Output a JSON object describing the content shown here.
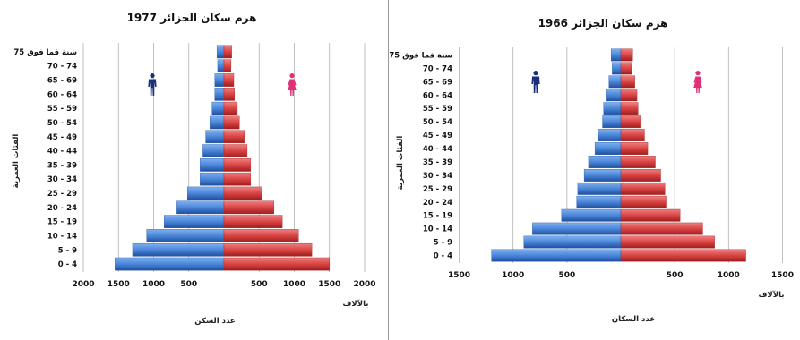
{
  "colors": {
    "male": "#4a86d8",
    "male_dark": "#1f4fa0",
    "female": "#d94444",
    "female_dark": "#a01e1e",
    "male_icon": "#1a2e7a",
    "female_icon": "#e0307a",
    "grid": "#b0b0b0"
  },
  "icons": {
    "male": "male-figure-icon",
    "female": "female-figure-icon"
  },
  "chart_data": [
    {
      "type": "bar",
      "title": "هرم سكان الجزائر 1977",
      "ylabel": "الفئات العمرية",
      "xlabel": "عدد السكن",
      "unit_label": "بالآلاف",
      "categories": [
        "0 - 4",
        "5 - 9",
        "10 - 14",
        "15 - 19",
        "20 - 24",
        "25 - 29",
        "30 - 34",
        "35 - 39",
        "40 - 44",
        "45 - 49",
        "50 - 54",
        "55 - 59",
        "60 - 64",
        "65 - 69",
        "70 - 74",
        "75 سنة فما فوق"
      ],
      "x_ticks_left": [
        "2000",
        "1500",
        "1000",
        "500"
      ],
      "x_ticks_right": [
        "500",
        "1000",
        "1500",
        "2000"
      ],
      "xlim": [
        -2000,
        2000
      ],
      "grid": true,
      "series": [
        {
          "side": "left",
          "values": [
            1550,
            1300,
            1100,
            850,
            670,
            520,
            340,
            340,
            300,
            260,
            200,
            170,
            130,
            130,
            90,
            100
          ]
        },
        {
          "side": "right",
          "values": [
            1500,
            1250,
            1060,
            830,
            710,
            540,
            380,
            380,
            330,
            290,
            220,
            190,
            150,
            140,
            100,
            110
          ]
        }
      ]
    },
    {
      "type": "bar",
      "title": "هرم سكان الجزائر 1966",
      "ylabel": "الفئات العمرية",
      "xlabel": "عدد السكان",
      "unit_label": "بالآلاف",
      "categories": [
        "0 - 4",
        "5 - 9",
        "10 - 14",
        "15 - 19",
        "20 - 24",
        "25 - 29",
        "30 - 34",
        "35 - 39",
        "40 - 44",
        "45 - 49",
        "50 - 54",
        "55 - 59",
        "60 - 64",
        "65 - 69",
        "70 - 74",
        "75 سنة فما فوق"
      ],
      "x_ticks_left": [
        "1500",
        "1000",
        "500"
      ],
      "x_ticks_right": [
        "500",
        "1000",
        "1500"
      ],
      "xlim": [
        -1500,
        1500
      ],
      "grid": true,
      "series": [
        {
          "side": "left",
          "values": [
            1200,
            900,
            820,
            550,
            410,
            400,
            340,
            300,
            240,
            210,
            170,
            160,
            130,
            110,
            80,
            90
          ]
        },
        {
          "side": "right",
          "values": [
            1160,
            870,
            760,
            550,
            420,
            410,
            370,
            320,
            250,
            220,
            180,
            160,
            150,
            130,
            100,
            110
          ]
        }
      ]
    }
  ]
}
